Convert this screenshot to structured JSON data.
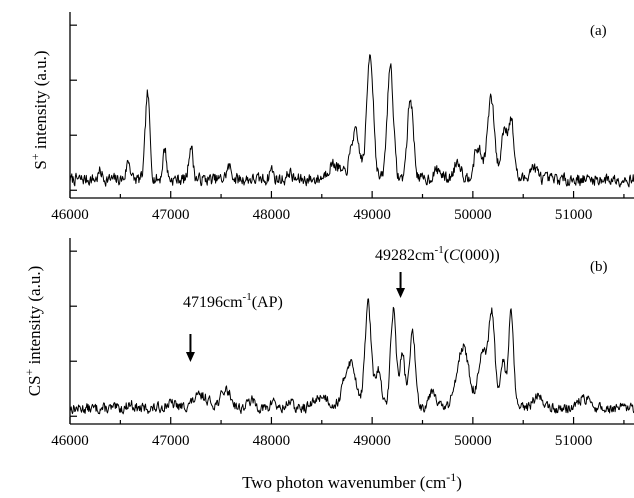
{
  "xlabel_main": "Two photon wavenumber (cm",
  "xlabel_sup": "-1",
  "xlabel_close": ")",
  "chart_data": [
    {
      "type": "line",
      "panel": "(a)",
      "ylabel_main": "S",
      "ylabel_sup": "+",
      "ylabel_rest": " intensity (a.u.)",
      "xlim": [
        46000,
        51600
      ],
      "xticks": [
        "46000",
        "47000",
        "48000",
        "49000",
        "50000",
        "51000"
      ],
      "ylim": [
        0,
        1.2
      ],
      "series": [
        {
          "baseline": 0.12,
          "peaks": [
            [
              46300,
              0.05,
              18
            ],
            [
              46580,
              0.12,
              20
            ],
            [
              46770,
              0.55,
              22
            ],
            [
              46940,
              0.2,
              18
            ],
            [
              47200,
              0.22,
              20
            ],
            [
              47580,
              0.08,
              25
            ],
            [
              48000,
              0.07,
              18
            ],
            [
              48180,
              0.05,
              18
            ],
            [
              48620,
              0.1,
              60
            ],
            [
              48830,
              0.3,
              45
            ],
            [
              48980,
              0.82,
              32
            ],
            [
              49180,
              0.74,
              30
            ],
            [
              49380,
              0.52,
              30
            ],
            [
              49650,
              0.06,
              40
            ],
            [
              49850,
              0.12,
              35
            ],
            [
              50050,
              0.2,
              40
            ],
            [
              50180,
              0.52,
              35
            ],
            [
              50310,
              0.32,
              28
            ],
            [
              50380,
              0.38,
              28
            ],
            [
              50600,
              0.08,
              40
            ]
          ],
          "noise": 0.035,
          "seed": 7
        }
      ]
    },
    {
      "type": "line",
      "panel": "(b)",
      "ylabel_main": "CS",
      "ylabel_sup": "+",
      "ylabel_rest": " intensity (a.u.)",
      "xlim": [
        46000,
        51600
      ],
      "xticks": [
        "46000",
        "47000",
        "48000",
        "49000",
        "50000",
        "51000"
      ],
      "ylim": [
        0,
        1.2
      ],
      "series": [
        {
          "baseline": 0.1,
          "peaks": [
            [
              46600,
              0.03,
              30
            ],
            [
              47000,
              0.03,
              60
            ],
            [
              47300,
              0.08,
              80
            ],
            [
              47550,
              0.12,
              50
            ],
            [
              47800,
              0.05,
              40
            ],
            [
              48020,
              0.06,
              20
            ],
            [
              48180,
              0.05,
              25
            ],
            [
              48500,
              0.08,
              70
            ],
            [
              48780,
              0.3,
              60
            ],
            [
              48960,
              0.68,
              30
            ],
            [
              49060,
              0.25,
              30
            ],
            [
              49210,
              0.64,
              28
            ],
            [
              49300,
              0.35,
              25
            ],
            [
              49400,
              0.48,
              30
            ],
            [
              49600,
              0.12,
              40
            ],
            [
              49900,
              0.4,
              60
            ],
            [
              50100,
              0.35,
              45
            ],
            [
              50190,
              0.58,
              30
            ],
            [
              50300,
              0.3,
              25
            ],
            [
              50380,
              0.62,
              25
            ],
            [
              50650,
              0.08,
              50
            ],
            [
              51100,
              0.06,
              60
            ]
          ],
          "noise": 0.03,
          "seed": 13
        }
      ],
      "annotations": [
        {
          "text_value": "47196cm",
          "text_sup": "-1",
          "text_rest": "(AP)",
          "x": 47196
        },
        {
          "text_value": "49282cm",
          "text_sup": "-1",
          "text_open": "(",
          "text_italic": "C",
          "text_rest": "(000))",
          "x": 49282
        }
      ]
    }
  ]
}
